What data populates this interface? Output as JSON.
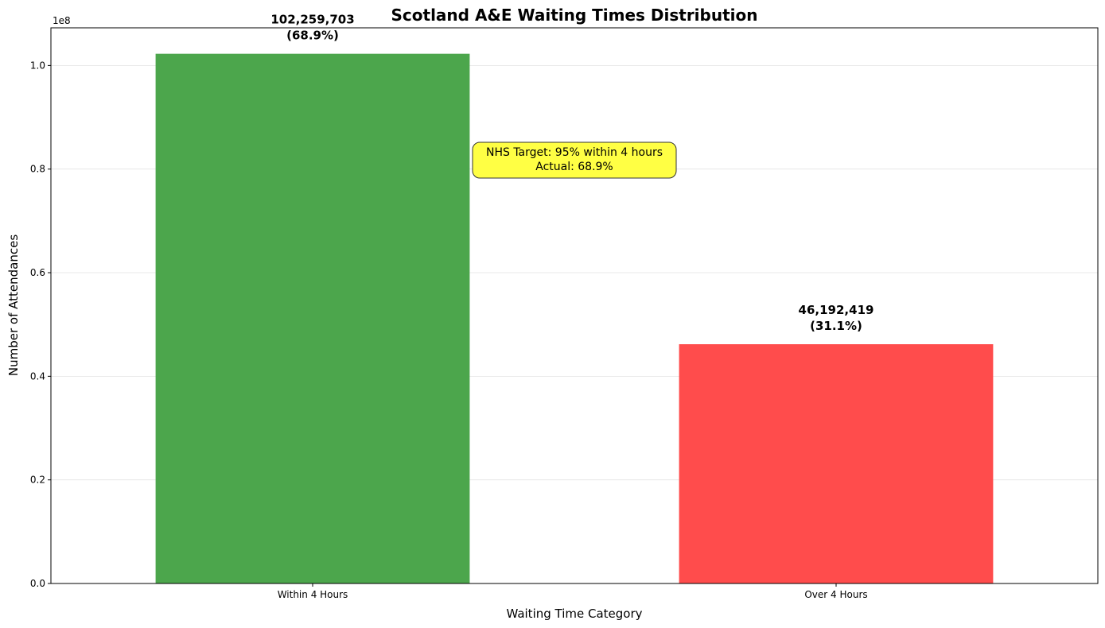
{
  "chart_data": {
    "type": "bar",
    "title": "Scotland A&E Waiting Times Distribution",
    "xlabel": "Waiting Time Category",
    "ylabel": "Number of Attendances",
    "offset_label": "1e8",
    "categories": [
      "Within 4 Hours",
      "Over 4 Hours"
    ],
    "values": [
      102259703,
      46192419
    ],
    "value_labels": [
      "102,259,703",
      "46,192,419"
    ],
    "percent_labels": [
      "(68.9%)",
      "(31.1%)"
    ],
    "colors": [
      "#4ca64c",
      "#ff4c4c"
    ],
    "ylim": [
      0,
      107272000
    ],
    "yticks": [
      0,
      20000000,
      40000000,
      60000000,
      80000000,
      100000000
    ],
    "ytick_labels": [
      "0.0",
      "0.2",
      "0.4",
      "0.6",
      "0.8",
      "1.0"
    ],
    "grid": "y",
    "annotation": {
      "lines": [
        "NHS Target: 95% within 4 hours",
        "Actual: 68.9%"
      ],
      "background": "#ffff44"
    }
  }
}
